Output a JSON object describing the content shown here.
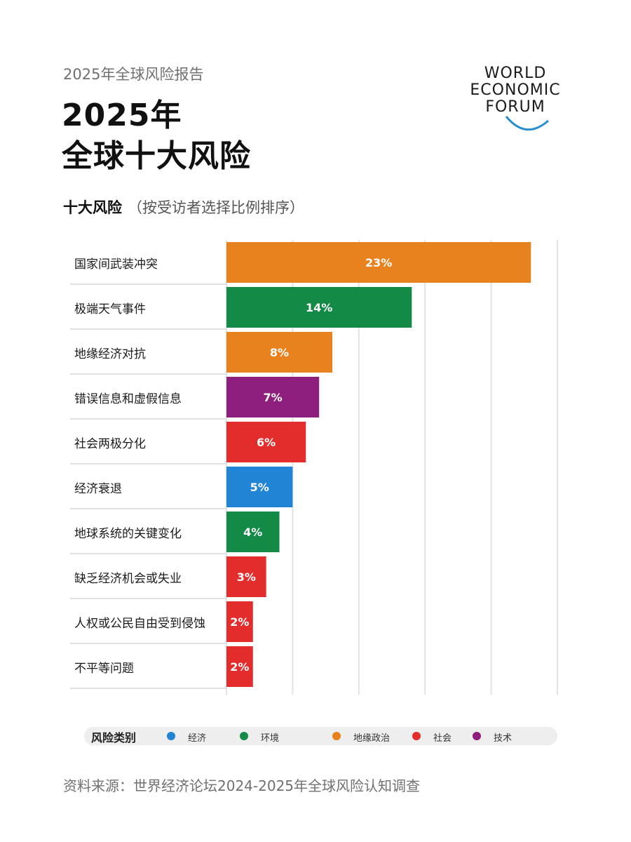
{
  "header": {
    "report_label": "2025年全球风险报告",
    "title_line1": "2025年",
    "title_line2": "全球十大风险",
    "logo_line1": "WORLD",
    "logo_line2": "ECONOMIC",
    "logo_line3": "FORUM"
  },
  "subtitle": {
    "bold": "十大风险",
    "note": "（按受访者选择比例排序）"
  },
  "chart_data": {
    "type": "bar",
    "orientation": "horizontal",
    "categories": [
      "国家间武装冲突",
      "极端天气事件",
      "地缘经济对抗",
      "错误信息和虚假信息",
      "社会两极分化",
      "经济衰退",
      "地球系统的关键变化",
      "缺乏经济机会或失业",
      "人权或公民自由受到侵蚀",
      "不平等问题"
    ],
    "values": [
      23,
      14,
      8,
      7,
      6,
      5,
      4,
      3,
      2,
      2
    ],
    "value_labels": [
      "23%",
      "14%",
      "8%",
      "7%",
      "6%",
      "5%",
      "4%",
      "3%",
      "2%",
      "2%"
    ],
    "categories_type": [
      "地缘政治",
      "环境",
      "地缘政治",
      "技术",
      "社会",
      "经济",
      "环境",
      "社会",
      "社会",
      "社会"
    ],
    "xlim": [
      0,
      25
    ],
    "grid": true,
    "legend_placement": "bottom"
  },
  "legend": {
    "title": "风险类别",
    "items": [
      {
        "label": "经济",
        "color": "#2184d4"
      },
      {
        "label": "环境",
        "color": "#138a46"
      },
      {
        "label": "地缘政治",
        "color": "#e8821e"
      },
      {
        "label": "社会",
        "color": "#e32c2c"
      },
      {
        "label": "技术",
        "color": "#8e1f7e"
      }
    ]
  },
  "colors": {
    "经济": "#2184d4",
    "环境": "#138a46",
    "地缘政治": "#e8821e",
    "社会": "#e32c2c",
    "技术": "#8e1f7e"
  },
  "source": "资料来源：世界经济论坛2024-2025年全球风险认知调查"
}
